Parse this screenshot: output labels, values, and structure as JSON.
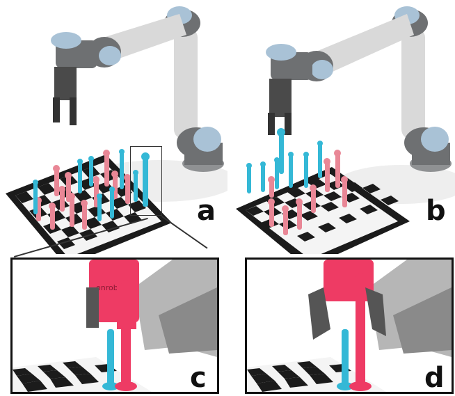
{
  "figure": {
    "panels": [
      {
        "id": "a",
        "label": "a",
        "content": "robot-arm-over-chessboard"
      },
      {
        "id": "b",
        "label": "b",
        "content": "robot-arm-grasping-piece"
      },
      {
        "id": "c",
        "label": "c",
        "content": "closeup-gripper-approach"
      },
      {
        "id": "d",
        "label": "d",
        "content": "closeup-gripper-grasp"
      }
    ],
    "gripper_text": "onrobot",
    "colors": {
      "arm_body": "#d9d9d9",
      "arm_joint": "#6e7072",
      "arm_cap": "#a9c2d6",
      "piece_pink": "#e98796",
      "piece_blue": "#34b8d6",
      "piece_red": "#ee3b64",
      "board_dark": "#1b1b1b",
      "board_light": "#f4f4f4"
    }
  }
}
